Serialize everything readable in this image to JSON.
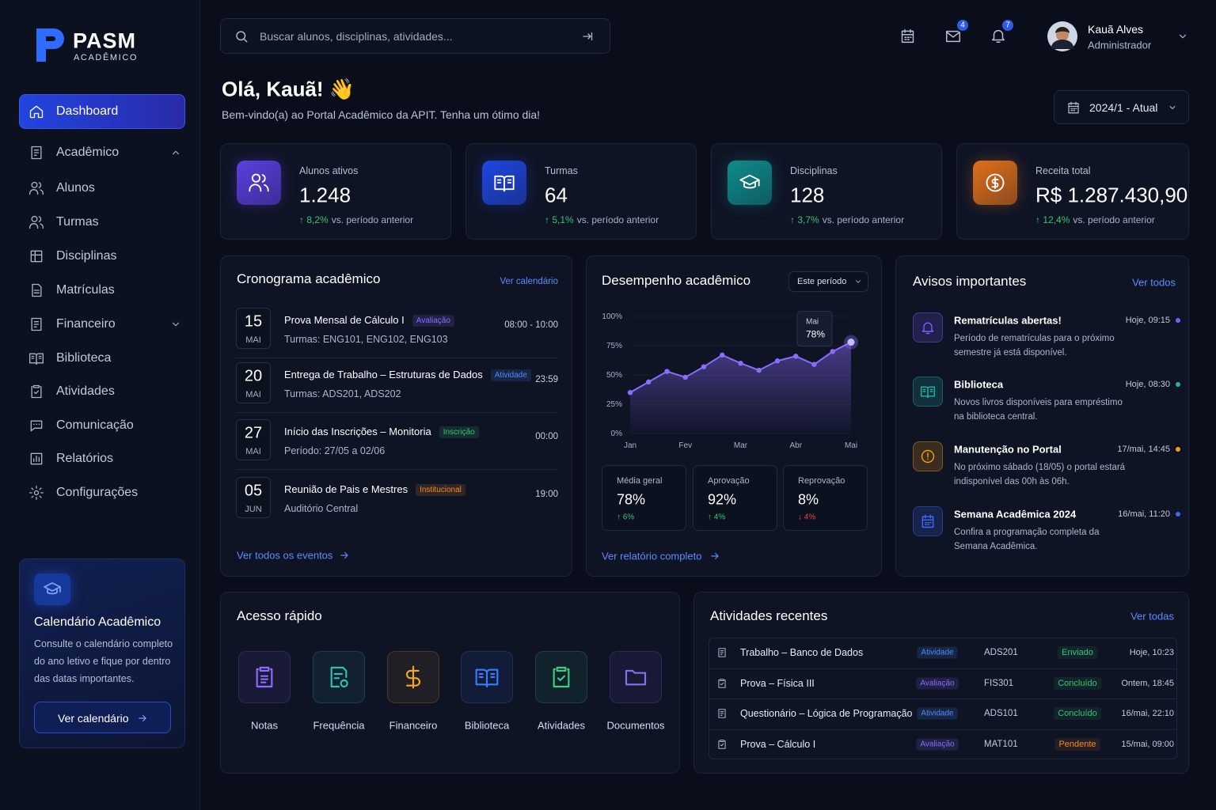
{
  "brand": {
    "name": "PASM",
    "sub": "ACADÊMICO"
  },
  "sidebar": {
    "items": [
      "Dashboard",
      "Acadêmico",
      "Alunos",
      "Turmas",
      "Disciplinas",
      "Matrículas",
      "Financeiro",
      "Biblioteca",
      "Atividades",
      "Comunicação",
      "Relatórios",
      "Configurações"
    ],
    "promo": {
      "title": "Calendário Acadêmico",
      "text": "Consulte o calendário completo do ano letivo e fique por dentro das datas importantes.",
      "button": "Ver calendário"
    }
  },
  "topbar": {
    "search_placeholder": "Buscar alunos, disciplinas, atividades...",
    "mail_badge": 4,
    "alert_badge": 7,
    "user": {
      "name": "Kauã Alves",
      "role": "Administrador"
    }
  },
  "greeting": {
    "title": "Olá, Kauã! 👋",
    "subtitle": "Bem-vindo(a) ao Portal Acadêmico da APIT. Tenha um ótimo dia!",
    "period": "2024/1 - Atual"
  },
  "stats": [
    {
      "label": "Alunos ativos",
      "value": "1.248",
      "change": "↑ 8,2%",
      "note": "vs. período anterior",
      "color": "#5b3fe0"
    },
    {
      "label": "Turmas",
      "value": "64",
      "change": "↑ 5,1%",
      "note": "vs. período anterior",
      "color": "#1f46e0"
    },
    {
      "label": "Disciplinas",
      "value": "128",
      "change": "↑ 3,7%",
      "note": "vs. período anterior",
      "color": "#0e8c8c"
    },
    {
      "label": "Receita total",
      "value": "R$ 1.287.430,90",
      "change": "↑ 12,4%",
      "note": "vs. período anterior",
      "color": "#e0701a"
    }
  ],
  "schedule": {
    "title": "Cronograma acadêmico",
    "link": "Ver calendário",
    "events": [
      {
        "day": "15",
        "month": "MAI",
        "title": "Prova Mensal de Cálculo I",
        "tag": "Avaliação",
        "tag_color": "#8b6cff",
        "detail": "Turmas: ENG101, ENG102, ENG103",
        "time": "08:00 - 10:00"
      },
      {
        "day": "20",
        "month": "MAI",
        "title": "Entrega de Trabalho – Estruturas de Dados",
        "tag": "Atividade",
        "tag_color": "#4d8bff",
        "detail": "Turmas: ADS201, ADS202",
        "time": "23:59"
      },
      {
        "day": "27",
        "month": "MAI",
        "title": "Início das Inscrições – Monitoria",
        "tag": "Inscrição",
        "tag_color": "#36c46f",
        "detail": "Período: 27/05 a 02/06",
        "time": "00:00"
      },
      {
        "day": "05",
        "month": "JUN",
        "title": "Reunião de Pais e Mestres",
        "tag": "Institucional",
        "tag_color": "#f08a24",
        "detail": "Auditório Central",
        "time": "19:00"
      }
    ],
    "footer": "Ver todos os eventos"
  },
  "chart_data": {
    "type": "line",
    "title": "Desempenho acadêmico",
    "categories": [
      "Jan",
      null,
      null,
      "Fev",
      null,
      null,
      "Mar",
      null,
      null,
      "Abr",
      null,
      null,
      "Mai"
    ],
    "values": [
      35,
      44,
      53,
      48,
      57,
      67,
      60,
      54,
      62,
      66,
      59,
      70,
      78
    ],
    "value_labels": [
      null,
      null,
      null,
      null,
      null,
      null,
      null,
      null,
      null,
      null,
      null,
      null,
      "78%"
    ],
    "color": "#8b6cff",
    "ylim": [
      0,
      100
    ],
    "yticks": [
      {
        "value": 0,
        "label": "0%"
      },
      {
        "value": 25,
        "label": "25%"
      },
      {
        "value": 50,
        "label": "50%"
      },
      {
        "value": 75,
        "label": "75%"
      },
      {
        "value": 100,
        "label": "100%"
      }
    ],
    "grid": true
  },
  "performance": {
    "filter": "Este período",
    "summary": [
      {
        "label": "Média geral",
        "value": "78%",
        "change": "↑ 6%",
        "color": "#36c46f"
      },
      {
        "label": "Aprovação",
        "value": "92%",
        "change": "↑ 4%",
        "color": "#36c46f"
      },
      {
        "label": "Reprovação",
        "value": "8%",
        "change": "↓ 4%",
        "color": "#ef4444"
      }
    ],
    "link": "Ver relatório completo"
  },
  "notices": {
    "title": "Avisos importantes",
    "link": "Ver todos",
    "items": [
      {
        "title": "Rematrículas abertas!",
        "time": "Hoje, 09:15",
        "text": "Período de rematrículas para o próximo semestre já está disponível.",
        "color": "#7c5cff"
      },
      {
        "title": "Biblioteca",
        "time": "Hoje, 08:30",
        "text": "Novos livros disponíveis para empréstimo na biblioteca central.",
        "color": "#1fb5a8"
      },
      {
        "title": "Manutenção no Portal",
        "time": "17/mai, 14:45",
        "text": "No próximo sábado (18/05) o portal estará indisponível das 00h às 06h.",
        "color": "#f59e0b"
      },
      {
        "title": "Semana Acadêmica 2024",
        "time": "16/mai, 11:20",
        "text": "Confira a programação completa da Semana Acadêmica.",
        "color": "#3b6cf5"
      }
    ]
  },
  "quick_access": {
    "title": "Acesso rápido",
    "items": [
      {
        "label": "Notas",
        "color": "#8f6bff"
      },
      {
        "label": "Frequência",
        "color": "#2ec4b0"
      },
      {
        "label": "Financeiro",
        "color": "#f5a623"
      },
      {
        "label": "Biblioteca",
        "color": "#3b7bff"
      },
      {
        "label": "Atividades",
        "color": "#3ccf7a"
      },
      {
        "label": "Documentos",
        "color": "#8a6cf0"
      }
    ]
  },
  "recent": {
    "title": "Atividades recentes",
    "link": "Ver todas",
    "rows": [
      {
        "title": "Trabalho – Banco de Dados",
        "type": "Atividade",
        "type_color": "#4d8bff",
        "code": "ADS201",
        "status": "Enviado",
        "status_color": "#36c46f",
        "time": "Hoje, 10:23"
      },
      {
        "title": "Prova – Física III",
        "type": "Avaliação",
        "type_color": "#8b6cff",
        "code": "FIS301",
        "status": "Concluído",
        "status_color": "#36c46f",
        "time": "Ontem, 18:45"
      },
      {
        "title": "Questionário – Lógica de Programação",
        "type": "Atividade",
        "type_color": "#4d8bff",
        "code": "ADS101",
        "status": "Concluído",
        "status_color": "#36c46f",
        "time": "16/mai, 22:10"
      },
      {
        "title": "Prova – Cálculo I",
        "type": "Avaliação",
        "type_color": "#8b6cff",
        "code": "MAT101",
        "status": "Pendente",
        "status_color": "#f08a24",
        "time": "15/mai, 09:00"
      }
    ]
  }
}
